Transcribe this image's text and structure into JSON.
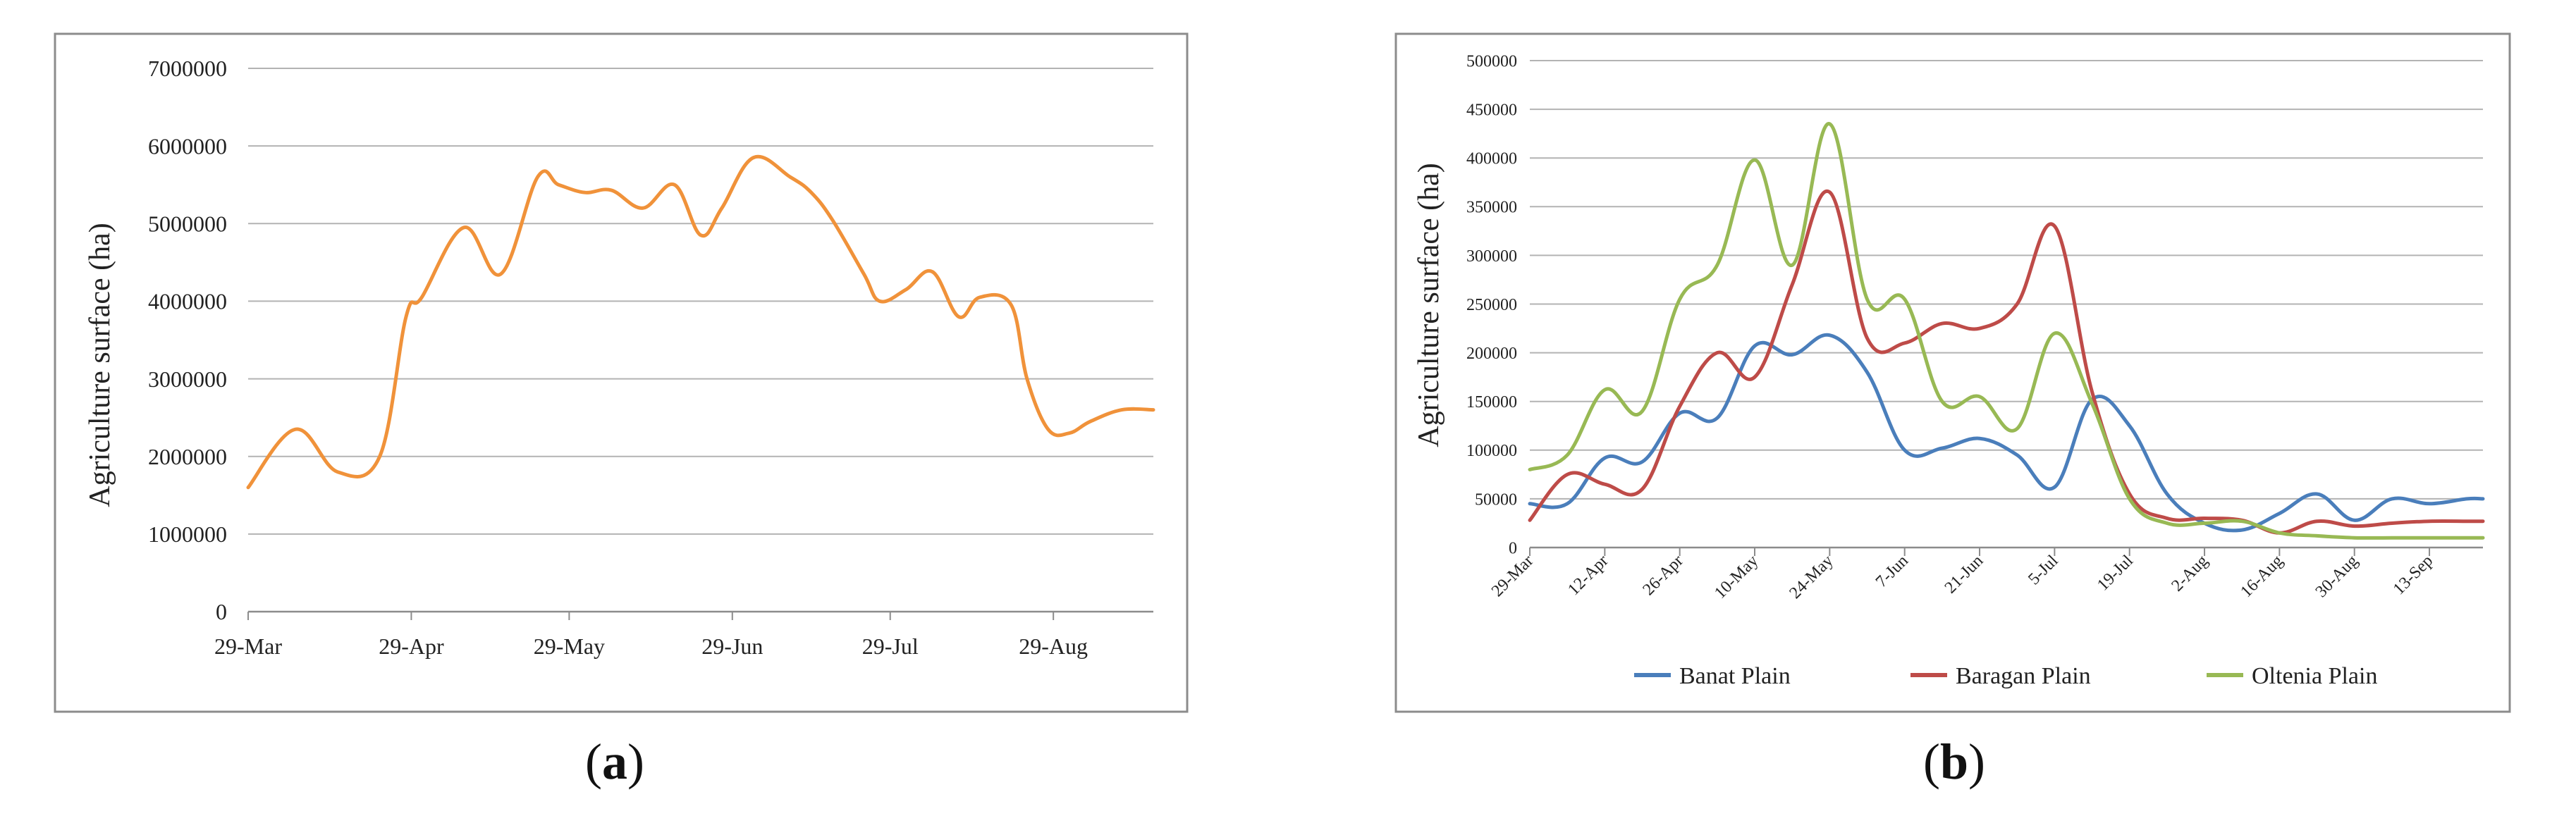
{
  "chart_data": [
    {
      "id": "a",
      "type": "line",
      "caption": {
        "open": "(",
        "letter": "a",
        "close": ")"
      },
      "title": "",
      "xlabel": "",
      "ylabel": "Agriculture surface (ha)",
      "ylim": [
        0,
        7000000
      ],
      "yticks": [
        "0",
        "1000000",
        "2000000",
        "3000000",
        "4000000",
        "5000000",
        "6000000",
        "7000000"
      ],
      "xticks": [
        "29-Mar",
        "29-Apr",
        "29-May",
        "29-Jun",
        "29-Jul",
        "29-Aug"
      ],
      "xlim_days": [
        0,
        172
      ],
      "xtick_days": [
        0,
        31,
        61,
        92,
        122,
        153
      ],
      "legend": "none",
      "grid": true,
      "color": "#f0923a",
      "series": [
        {
          "name": "Agriculture surface",
          "x": [
            0,
            9,
            17,
            25,
            30,
            33,
            41,
            48,
            55,
            59,
            64,
            69,
            75,
            81,
            86,
            90,
            96,
            103,
            107,
            111,
            117,
            120,
            125,
            130,
            135,
            139,
            145,
            148,
            152,
            156,
            160,
            166,
            172
          ],
          "values": [
            1600000,
            2350000,
            1800000,
            2000000,
            3800000,
            4050000,
            4950000,
            4350000,
            5600000,
            5500000,
            5400000,
            5430000,
            5200000,
            5500000,
            4850000,
            5200000,
            5850000,
            5600000,
            5400000,
            5050000,
            4350000,
            4000000,
            4150000,
            4380000,
            3800000,
            4050000,
            3950000,
            3000000,
            2350000,
            2300000,
            2450000,
            2600000,
            2600000
          ]
        }
      ]
    },
    {
      "id": "b",
      "type": "line",
      "caption": {
        "open": "(",
        "letter": "b",
        "close": ")"
      },
      "title": "",
      "xlabel": "",
      "ylabel": "Agriculture surface (ha)",
      "ylim": [
        0,
        500000
      ],
      "yticks": [
        "0",
        "50000",
        "100000",
        "150000",
        "200000",
        "250000",
        "300000",
        "350000",
        "400000",
        "450000",
        "500000"
      ],
      "xticks": [
        "29-Mar",
        "12-Apr",
        "26-Apr",
        "10-May",
        "24-May",
        "7-Jun",
        "21-Jun",
        "5-Jul",
        "19-Jul",
        "2-Aug",
        "16-Aug",
        "30-Aug",
        "13-Sep"
      ],
      "xlim_days": [
        0,
        178
      ],
      "xtick_days": [
        0,
        14,
        28,
        42,
        56,
        70,
        84,
        98,
        112,
        126,
        140,
        154,
        168
      ],
      "legend": "bottom",
      "grid": true,
      "series": [
        {
          "name": "Banat Plain",
          "color": "#4a7ebb",
          "x": [
            0,
            7,
            14,
            21,
            28,
            35,
            42,
            49,
            56,
            63,
            70,
            77,
            84,
            91,
            98,
            105,
            112,
            119,
            126,
            133,
            140,
            147,
            154,
            161,
            168,
            175,
            178
          ],
          "values": [
            45000,
            45000,
            92000,
            88000,
            138000,
            133000,
            207000,
            198000,
            218000,
            180000,
            100000,
            102000,
            112000,
            95000,
            62000,
            152000,
            125000,
            55000,
            25000,
            18000,
            35000,
            55000,
            28000,
            50000,
            45000,
            50000,
            50000
          ]
        },
        {
          "name": "Baragan Plain",
          "color": "#be4b48",
          "x": [
            0,
            7,
            14,
            21,
            28,
            35,
            42,
            49,
            56,
            63,
            70,
            77,
            84,
            91,
            98,
            105,
            112,
            119,
            126,
            133,
            140,
            147,
            154,
            161,
            168,
            175,
            178
          ],
          "values": [
            28000,
            75000,
            65000,
            60000,
            145000,
            200000,
            175000,
            270000,
            365000,
            215000,
            210000,
            230000,
            225000,
            250000,
            330000,
            160000,
            55000,
            30000,
            30000,
            28000,
            15000,
            27000,
            22000,
            25000,
            27000,
            27000,
            27000
          ]
        },
        {
          "name": "Oltenia Plain",
          "color": "#98b954",
          "x": [
            0,
            7,
            14,
            21,
            28,
            35,
            42,
            49,
            56,
            63,
            70,
            77,
            84,
            91,
            98,
            105,
            112,
            119,
            126,
            133,
            140,
            147,
            154,
            161,
            168,
            175,
            178
          ],
          "values": [
            80000,
            95000,
            162000,
            140000,
            255000,
            290000,
            398000,
            290000,
            435000,
            255000,
            255000,
            150000,
            155000,
            122000,
            220000,
            148000,
            50000,
            25000,
            25000,
            27000,
            15000,
            12000,
            10000,
            10000,
            10000,
            10000,
            10000
          ]
        }
      ]
    }
  ]
}
